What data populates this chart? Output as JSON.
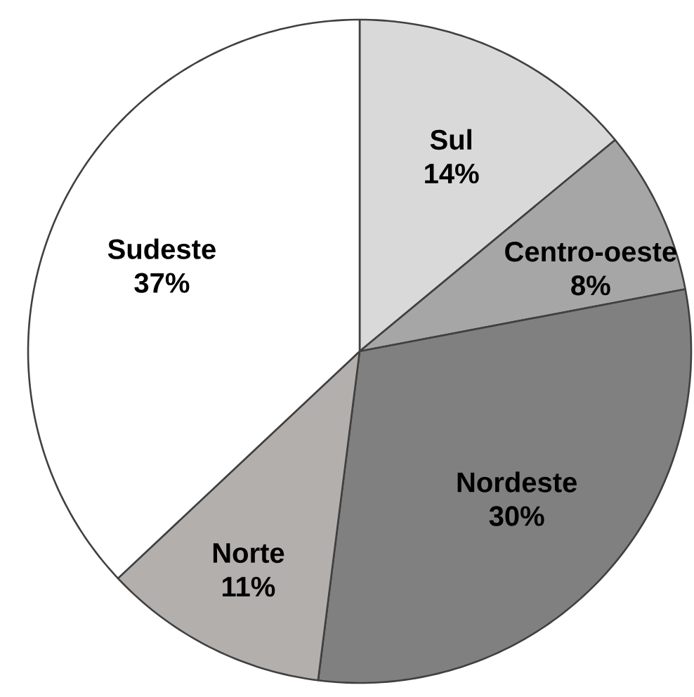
{
  "chart_data": {
    "type": "pie",
    "categories": [
      "Sul",
      "Centro-oeste",
      "Nordeste",
      "Norte",
      "Sudeste"
    ],
    "values": [
      14,
      8,
      30,
      11,
      37
    ],
    "value_labels": [
      "14%",
      "8%",
      "30%",
      "11%",
      "37%"
    ],
    "colors": [
      "#d9d9d9",
      "#a6a6a6",
      "#808080",
      "#b2afad",
      "#ffffff"
    ]
  }
}
